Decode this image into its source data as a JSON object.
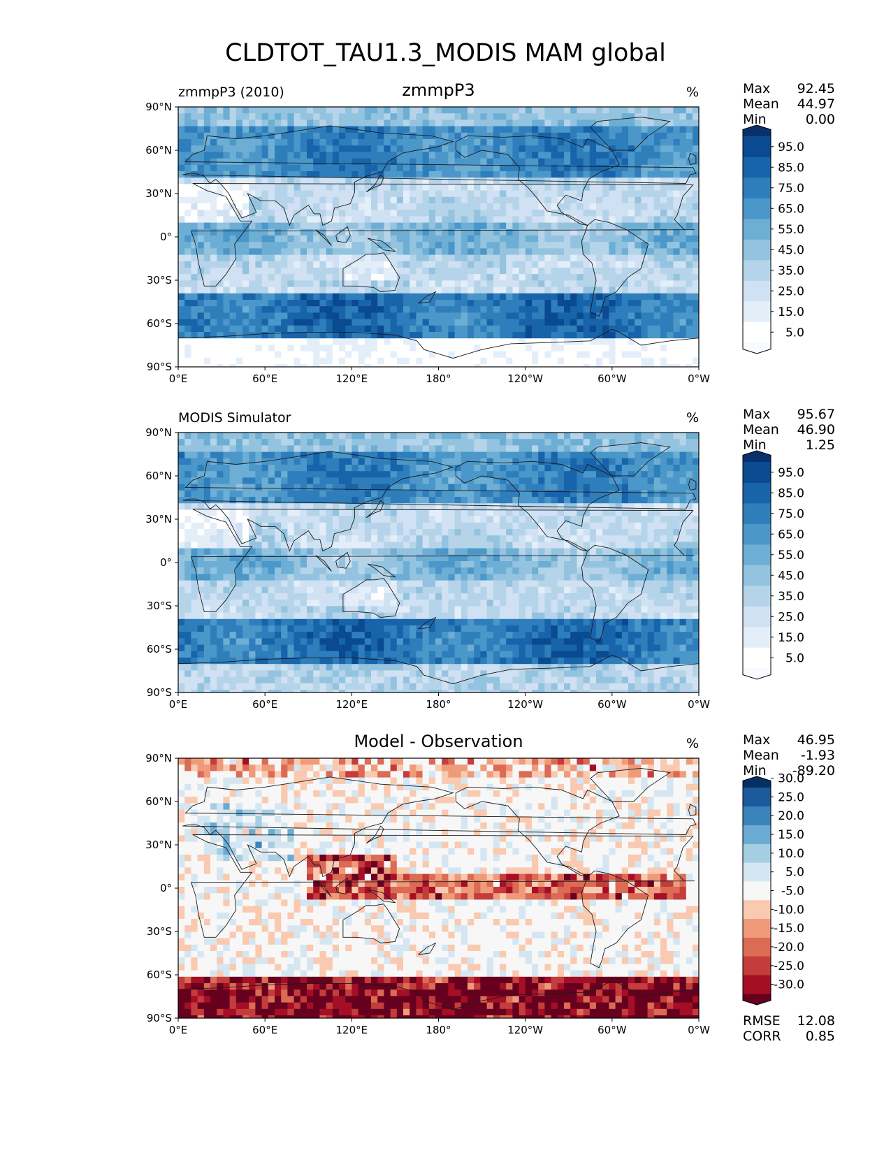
{
  "figure": {
    "title": "CLDTOT_TAU1.3_MODIS MAM global"
  },
  "panels": [
    {
      "left_title": "zmmpP3 (2010)",
      "center_title": "zmmpP3",
      "unit": "%",
      "stats": [
        {
          "label": "Max",
          "value": "92.45"
        },
        {
          "label": "Mean",
          "value": "44.97"
        },
        {
          "label": "Min",
          "value": "0.00"
        }
      ],
      "colorbar": {
        "ticks": [
          "5.0",
          "15.0",
          "25.0",
          "35.0",
          "45.0",
          "55.0",
          "65.0",
          "75.0",
          "85.0",
          "95.0"
        ],
        "colors": [
          "#f7fbff",
          "#ffffff",
          "#e3eef9",
          "#cfe1f2",
          "#b5d4e9",
          "#93c3df",
          "#6daed5",
          "#4b97c9",
          "#2f7ebc",
          "#1864aa",
          "#0a4a90",
          "#08306b"
        ]
      }
    },
    {
      "left_title": "MODIS Simulator",
      "center_title": "",
      "unit": "%",
      "stats": [
        {
          "label": "Max",
          "value": "95.67"
        },
        {
          "label": "Mean",
          "value": "46.90"
        },
        {
          "label": "Min",
          "value": "1.25"
        }
      ],
      "colorbar": {
        "ticks": [
          "5.0",
          "15.0",
          "25.0",
          "35.0",
          "45.0",
          "55.0",
          "65.0",
          "75.0",
          "85.0",
          "95.0"
        ],
        "colors": [
          "#f7fbff",
          "#ffffff",
          "#e3eef9",
          "#cfe1f2",
          "#b5d4e9",
          "#93c3df",
          "#6daed5",
          "#4b97c9",
          "#2f7ebc",
          "#1864aa",
          "#0a4a90",
          "#08306b"
        ]
      }
    },
    {
      "left_title": "",
      "center_title": "Model - Observation",
      "unit": "%",
      "stats": [
        {
          "label": "Max",
          "value": "46.95"
        },
        {
          "label": "Mean",
          "value": "-1.93"
        },
        {
          "label": "Min",
          "value": "-89.20"
        }
      ],
      "bottom_stats": [
        {
          "label": "RMSE",
          "value": "12.08"
        },
        {
          "label": "CORR",
          "value": "0.85"
        }
      ],
      "colorbar": {
        "ticks": [
          "-30.0",
          "-25.0",
          "-20.0",
          "-15.0",
          "-10.0",
          "-5.0",
          "5.0",
          "10.0",
          "15.0",
          "20.0",
          "25.0",
          "30.0"
        ],
        "colors": [
          "#67001f",
          "#a50f26",
          "#c43c3c",
          "#db6b55",
          "#ef9b7a",
          "#f9c9b0",
          "#f7f7f7",
          "#d4e6f1",
          "#a6cee3",
          "#6aaad3",
          "#3b83bb",
          "#1b5a9c",
          "#053061"
        ]
      }
    }
  ],
  "axes": {
    "x_ticks": [
      "0°E",
      "60°E",
      "120°E",
      "180°",
      "120°W",
      "60°W",
      "0°W"
    ],
    "y_ticks": [
      "90°N",
      "60°N",
      "30°N",
      "0°",
      "30°S",
      "60°S",
      "90°S"
    ]
  },
  "chart_data": [
    {
      "type": "heatmap",
      "title": "zmmpP3",
      "subtitle": "zmmpP3 (2010)",
      "projection": "cylindrical equidistant, global",
      "xlim": [
        0,
        360
      ],
      "ylim": [
        -90,
        90
      ],
      "unit": "%",
      "colorbar_levels": [
        5,
        15,
        25,
        35,
        45,
        55,
        65,
        75,
        85,
        95
      ],
      "colormap": "Blues",
      "stats": {
        "max": 92.45,
        "mean": 44.97,
        "min": 0.0
      }
    },
    {
      "type": "heatmap",
      "title": "MODIS Simulator",
      "projection": "cylindrical equidistant, global",
      "xlim": [
        0,
        360
      ],
      "ylim": [
        -90,
        90
      ],
      "unit": "%",
      "colorbar_levels": [
        5,
        15,
        25,
        35,
        45,
        55,
        65,
        75,
        85,
        95
      ],
      "colormap": "Blues",
      "stats": {
        "max": 95.67,
        "mean": 46.9,
        "min": 1.25
      }
    },
    {
      "type": "heatmap",
      "title": "Model - Observation",
      "projection": "cylindrical equidistant, global",
      "xlim": [
        0,
        360
      ],
      "ylim": [
        -90,
        90
      ],
      "unit": "%",
      "colorbar_levels": [
        -30,
        -25,
        -20,
        -15,
        -10,
        -5,
        5,
        10,
        15,
        20,
        25,
        30
      ],
      "colormap": "RdBu",
      "stats": {
        "max": 46.95,
        "mean": -1.93,
        "min": -89.2,
        "rmse": 12.08,
        "corr": 0.85
      }
    }
  ]
}
